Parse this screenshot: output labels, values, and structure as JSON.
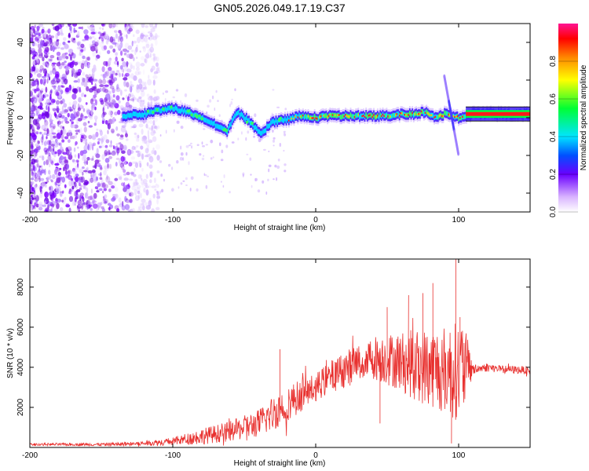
{
  "title": "GN05.2026.049.17.19.C37",
  "chart_data": [
    {
      "type": "heatmap",
      "xlabel": "Height of straight line (km)",
      "ylabel": "Frequency (Hz)",
      "xlim": [
        -200,
        150
      ],
      "ylim": [
        -50,
        50
      ],
      "xticks": [
        -200,
        -100,
        0,
        100
      ],
      "yticks": [
        -40,
        -20,
        0,
        20,
        40
      ],
      "colorbar": {
        "label": "Normalized spectral amplitude",
        "range": [
          0,
          1
        ],
        "ticks": [
          "0.0",
          "0.2",
          "0.4",
          "0.6",
          "0.8"
        ]
      },
      "ridge": {
        "x": [
          -135,
          -120,
          -110,
          -100,
          -90,
          -80,
          -70,
          -62,
          -55,
          -48,
          -42,
          -38,
          -34,
          -30,
          -20,
          -10,
          0,
          10,
          20,
          30,
          40,
          50,
          60,
          70,
          75,
          80,
          85,
          90,
          95,
          100,
          105,
          110,
          150
        ],
        "freq": [
          1,
          2,
          4,
          5,
          3,
          0,
          -4,
          -7,
          3,
          -1,
          -6,
          -9,
          -5,
          -2,
          -1,
          1,
          0,
          1,
          1,
          1,
          1,
          1,
          2,
          2,
          3,
          2,
          0,
          2,
          1,
          0,
          1,
          2,
          2
        ]
      }
    },
    {
      "type": "line",
      "xlabel": "Height of straight line (km)",
      "ylabel": "SNR (10 * v/v)",
      "xlim": [
        -200,
        150
      ],
      "ylim": [
        0,
        9400
      ],
      "xticks": [
        -200,
        -100,
        0,
        100
      ],
      "yticks": [
        2000,
        4000,
        6000,
        8000
      ],
      "color": "#e8302e",
      "envelope": {
        "x": [
          -200,
          -150,
          -120,
          -100,
          -80,
          -60,
          -40,
          -30,
          -20,
          -10,
          0,
          10,
          20,
          30,
          40,
          50,
          60,
          70,
          80,
          90,
          100,
          103,
          110,
          120,
          130,
          150
        ],
        "mean": [
          150,
          150,
          200,
          300,
          550,
          800,
          1200,
          1700,
          2200,
          2600,
          3000,
          3500,
          3900,
          4200,
          4500,
          4400,
          4300,
          4100,
          4000,
          3900,
          3800,
          4000,
          3900,
          4000,
          3900,
          3850
        ],
        "amp": [
          60,
          80,
          120,
          200,
          400,
          500,
          700,
          900,
          900,
          800,
          700,
          800,
          900,
          1000,
          1100,
          1300,
          1500,
          1800,
          2000,
          2200,
          2500,
          2500,
          250,
          220,
          200,
          200
        ]
      },
      "spikes": [
        {
          "x": -25,
          "value": 4900
        },
        {
          "x": 50,
          "value": 7000
        },
        {
          "x": 65,
          "value": 7600
        },
        {
          "x": 75,
          "value": 7700
        },
        {
          "x": 82,
          "value": 8200
        },
        {
          "x": 98,
          "value": 9400
        },
        {
          "x": 101,
          "value": 6500
        },
        {
          "x": 45,
          "value": 1200
        },
        {
          "x": 95,
          "value": 200
        }
      ]
    }
  ]
}
